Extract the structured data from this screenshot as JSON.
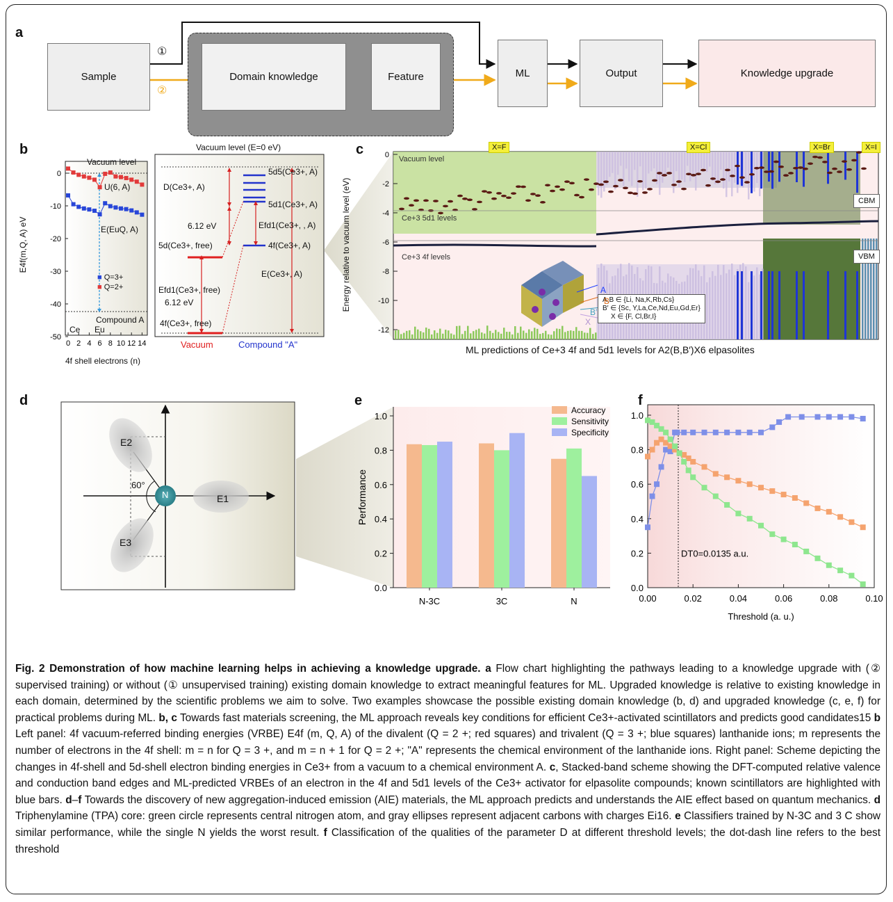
{
  "panel_labels": [
    "a",
    "b",
    "c",
    "d",
    "e",
    "f"
  ],
  "flow": {
    "sample": "Sample",
    "domain_knowledge": "Domain knowledge",
    "feature": "Feature",
    "ml": "ML",
    "output": "Output",
    "knowledge_upgrade": "Knowledge upgrade",
    "path1": "①",
    "path2": "②"
  },
  "panel_b_left": {
    "ylabel": "E4f(m,Q, A) eV",
    "xlabel": "4f shell electrons (n)",
    "vacuum_level": "Vacuum level",
    "compound": "Compound A",
    "u_label": "U(6, A)",
    "e_label": "E(EuQ, A)",
    "ce": "Ce",
    "eu": "Eu",
    "legend": [
      "Q=3+",
      "Q=2+"
    ],
    "yticks": [
      "0",
      "-10",
      "-20",
      "-30",
      "-40",
      "-50"
    ],
    "xticks": [
      "0",
      "2",
      "4",
      "6",
      "8",
      "10",
      "12",
      "14"
    ],
    "colors": {
      "q3": "#2846d8",
      "q2": "#e23a3a"
    }
  },
  "panel_b_right": {
    "vacuum": "Vacuum level (E=0 eV)",
    "d": "D(Ce3+, A)",
    "ev1": "6.12 eV",
    "ev2": "6.12 eV",
    "d5": "5d5(Ce3+, A)",
    "d1": "5d1(Ce3+, A)",
    "efd1": "Efd1(Ce3+, , A)",
    "f4a": "4f(Ce3+, A)",
    "d5free": "5d(Ce3+, free)",
    "efd1free": "Efd1(Ce3+, free)",
    "f4free": "4f(Ce3+, free)",
    "eca": "E(Ce3+, A)",
    "vac_label": "Vacuum",
    "comp_label": "Compound \"A\""
  },
  "panel_c": {
    "tags": [
      "X=F",
      "X=Cl",
      "X=Br",
      "X=I"
    ],
    "ylabel": "Energy relative to vacuum level (eV)",
    "vacuum_level": "Vacuum level",
    "ce5d": "Ce+3 5d1 levels",
    "ce4f": "Ce+3 4f levels",
    "cbm": "CBM",
    "vbm": "VBM",
    "yticks": [
      "0",
      "-2",
      "-4",
      "-6",
      "-8",
      "-10",
      "-12"
    ],
    "legend_lines": [
      "A,B ∈ {Li, Na,K,Rb,Cs}",
      "B′ ∈ {Sc, Y,La,Ce,Nd,Eu,Gd,Er}",
      "X ∈ {F, Cl,Br,I}"
    ],
    "crystal_labels": [
      "A",
      "B",
      "B′",
      "X"
    ],
    "title": "ML predictions of Ce+3 4f and 5d1 levels for A2(B,B′)X6 elpasolites"
  },
  "panel_d": {
    "e1": "E1",
    "e2": "E2",
    "e3": "E3",
    "n": "N",
    "angle": "60°"
  },
  "chart_data": [
    {
      "type": "bar",
      "categories": [
        "N-3C",
        "3C",
        "N"
      ],
      "series": [
        {
          "name": "Accuracy",
          "values": [
            0.835,
            0.84,
            0.75
          ],
          "color": "#f5b98e"
        },
        {
          "name": "Sensitivity",
          "values": [
            0.83,
            0.8,
            0.81
          ],
          "color": "#9ef09e"
        },
        {
          "name": "Specificity",
          "values": [
            0.85,
            0.9,
            0.65
          ],
          "color": "#a8b4f4"
        }
      ],
      "ylabel": "Performance",
      "ylim": [
        0.0,
        1.0
      ],
      "yticks": [
        "0.0",
        "0.2",
        "0.4",
        "0.6",
        "0.8",
        "1.0"
      ],
      "legend": "top-right"
    },
    {
      "type": "line",
      "xlabel": "Threshold (a. u.)",
      "xlim": [
        0.0,
        0.1
      ],
      "ylim": [
        0.0,
        1.0
      ],
      "xticks": [
        "0.00",
        "0.02",
        "0.04",
        "0.06",
        "0.08",
        "0.10"
      ],
      "yticks": [
        "0.0",
        "0.2",
        "0.4",
        "0.6",
        "0.8",
        "1.0"
      ],
      "annotation": "DT0=0.0135 a.u.",
      "threshold": 0.0135,
      "series": [
        {
          "color": "#7e8fe8",
          "x": [
            0.0,
            0.002,
            0.004,
            0.006,
            0.008,
            0.01,
            0.012,
            0.013,
            0.016,
            0.02,
            0.025,
            0.03,
            0.035,
            0.04,
            0.045,
            0.05,
            0.055,
            0.058,
            0.062,
            0.068,
            0.075,
            0.08,
            0.085,
            0.09,
            0.095
          ],
          "y": [
            0.35,
            0.53,
            0.6,
            0.7,
            0.8,
            0.79,
            0.9,
            0.9,
            0.9,
            0.9,
            0.9,
            0.9,
            0.9,
            0.9,
            0.9,
            0.9,
            0.93,
            0.96,
            0.99,
            0.99,
            0.99,
            0.99,
            0.99,
            0.99,
            0.98
          ]
        },
        {
          "color": "#f5a36e",
          "x": [
            0.0,
            0.002,
            0.004,
            0.006,
            0.008,
            0.01,
            0.012,
            0.014,
            0.016,
            0.018,
            0.02,
            0.025,
            0.03,
            0.035,
            0.04,
            0.045,
            0.05,
            0.055,
            0.06,
            0.065,
            0.07,
            0.075,
            0.08,
            0.085,
            0.09,
            0.095
          ],
          "y": [
            0.76,
            0.8,
            0.84,
            0.86,
            0.84,
            0.82,
            0.8,
            0.78,
            0.77,
            0.75,
            0.73,
            0.7,
            0.66,
            0.64,
            0.62,
            0.6,
            0.58,
            0.56,
            0.54,
            0.52,
            0.49,
            0.46,
            0.44,
            0.41,
            0.38,
            0.35
          ]
        },
        {
          "color": "#8ee68e",
          "x": [
            0.0,
            0.002,
            0.004,
            0.006,
            0.008,
            0.01,
            0.012,
            0.014,
            0.016,
            0.018,
            0.02,
            0.025,
            0.03,
            0.035,
            0.04,
            0.045,
            0.05,
            0.055,
            0.06,
            0.065,
            0.07,
            0.075,
            0.08,
            0.085,
            0.09,
            0.095
          ],
          "y": [
            0.97,
            0.96,
            0.94,
            0.92,
            0.9,
            0.86,
            0.82,
            0.78,
            0.73,
            0.68,
            0.64,
            0.58,
            0.53,
            0.48,
            0.43,
            0.4,
            0.36,
            0.31,
            0.28,
            0.25,
            0.21,
            0.17,
            0.13,
            0.1,
            0.07,
            0.02
          ]
        }
      ]
    }
  ],
  "caption": {
    "title": "Fig. 2 Demonstration of how machine learning helps in achieving a knowledge upgrade.",
    "p1": "Flow chart highlighting the pathways leading to a knowledge upgrade with (② supervised training) or without (① unsupervised training) existing domain knowledge to extract meaningful features for ML. Upgraded knowledge is relative to existing knowledge in each domain, determined by the scientific problems we aim to solve. Two examples showcase the possible existing domain knowledge (b, d) and upgraded knowledge (c, e, f) for practical problems during ML.",
    "p2": "Towards fast materials screening, the ML approach reveals key conditions for efficient Ce3+-activated scintillators and predicts good candidates15",
    "p3": "Left panel: 4f vacuum-referred binding energies (VRBE) E4f (m, Q, A) of the divalent (Q = 2 +; red squares) and trivalent (Q = 3 +; blue squares) lanthanide ions; m represents the number of electrons in the 4f shell: m = n for Q = 3 +, and m = n + 1 for Q = 2 +; \"A\" represents the chemical environment of the lanthanide ions. Right panel: Scheme depicting the changes in 4f-shell and 5d-shell electron binding energies in Ce3+ from a vacuum to a chemical environment A.",
    "p4": "Stacked-band scheme showing the DFT-computed relative valence and conduction band edges and ML-predicted VRBEs of an electron in the 4f and 5d1 levels of the Ce3+ activator for elpasolite compounds; known scintillators are highlighted with blue bars.",
    "p5": "Towards the discovery of new aggregation-induced emission (AIE) materials, the ML approach predicts and understands the AIE effect based on quantum mechanics.",
    "p6": "Triphenylamine (TPA) core: green circle represents central nitrogen atom, and gray ellipses represent adjacent carbons with charges Ei16.",
    "p7": "Classifiers trained by N-3C and 3 C show similar performance, while the single N yields the worst result.",
    "p8": "Classification of the qualities of the parameter D at different threshold levels; the dot-dash line refers to the best threshold"
  }
}
